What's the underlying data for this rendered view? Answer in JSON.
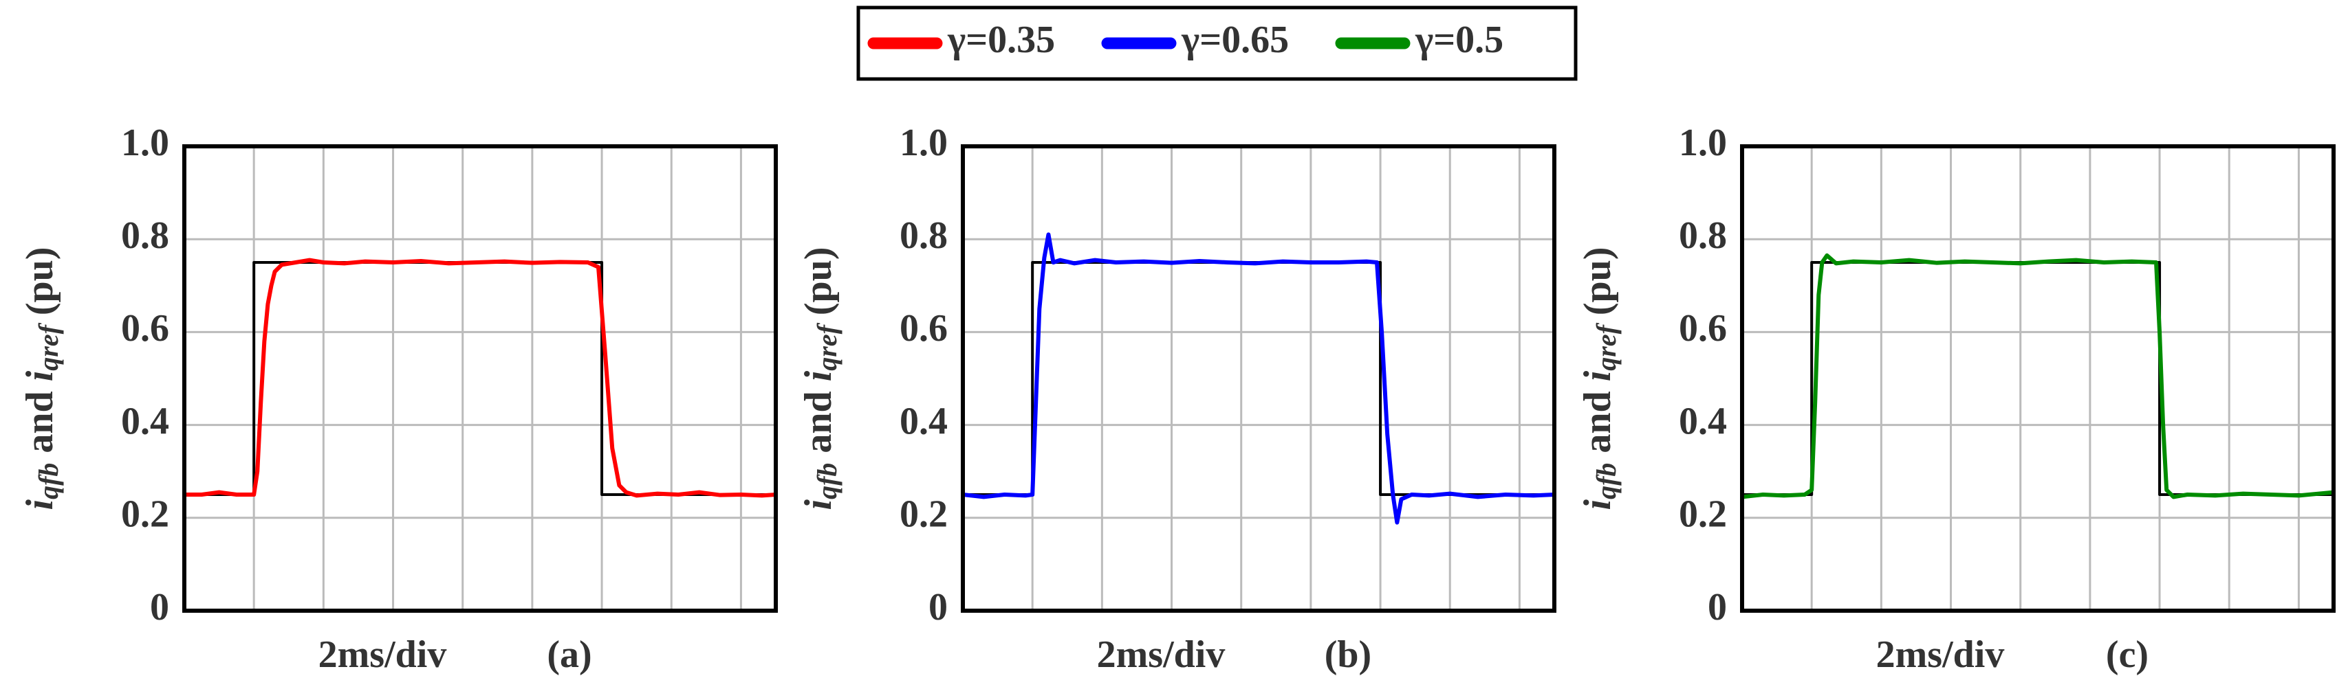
{
  "chart_data": [
    {
      "type": "line",
      "x_label": "2ms/div",
      "panel_label": "(a)",
      "y_label": [
        "i",
        "qfb",
        "and",
        "i",
        "qref",
        "(pu)"
      ],
      "xlim": [
        0,
        8.5
      ],
      "xticks": [
        1,
        2,
        3,
        4,
        5,
        6,
        7,
        8
      ],
      "ylim": [
        0,
        1
      ],
      "yticks": [
        0,
        0.2,
        0.4,
        0.6,
        0.8,
        {
          "value": 1,
          "label": "1.0"
        }
      ],
      "grid": true,
      "series": [
        {
          "color": "#000000",
          "x": [
            0,
            1,
            1,
            6,
            6,
            8.5
          ],
          "values": [
            0.25,
            0.25,
            0.75,
            0.75,
            0.25,
            0.25
          ]
        },
        {
          "name": "γ=0.35",
          "color": "#ff0000",
          "x": [
            0,
            0.25,
            0.5,
            0.75,
            1.0,
            1.05,
            1.1,
            1.15,
            1.2,
            1.25,
            1.3,
            1.4,
            1.6,
            1.8,
            2.0,
            2.3,
            2.6,
            3.0,
            3.4,
            3.8,
            4.2,
            4.6,
            5.0,
            5.4,
            5.8,
            5.95,
            6.05,
            6.15,
            6.25,
            6.35,
            6.5,
            6.8,
            7.1,
            7.4,
            7.7,
            8.0,
            8.3,
            8.5
          ],
          "values": [
            0.25,
            0.25,
            0.255,
            0.25,
            0.25,
            0.3,
            0.45,
            0.58,
            0.66,
            0.7,
            0.73,
            0.745,
            0.75,
            0.755,
            0.75,
            0.748,
            0.752,
            0.75,
            0.753,
            0.748,
            0.75,
            0.752,
            0.749,
            0.751,
            0.75,
            0.74,
            0.55,
            0.35,
            0.27,
            0.255,
            0.248,
            0.252,
            0.25,
            0.255,
            0.249,
            0.25,
            0.248,
            0.25
          ]
        }
      ]
    },
    {
      "type": "line",
      "x_label": "2ms/div",
      "panel_label": "(b)",
      "y_label": [
        "i",
        "qfb",
        "and",
        "i",
        "qref",
        "(pu)"
      ],
      "xlim": [
        0,
        8.5
      ],
      "xticks": [
        1,
        2,
        3,
        4,
        5,
        6,
        7,
        8
      ],
      "ylim": [
        0,
        1
      ],
      "yticks": [
        0,
        0.2,
        0.4,
        0.6,
        0.8,
        {
          "value": 1,
          "label": "1.0"
        }
      ],
      "grid": true,
      "series": [
        {
          "color": "#000000",
          "x": [
            0,
            1,
            1,
            6,
            6,
            8.5
          ],
          "values": [
            0.25,
            0.25,
            0.75,
            0.75,
            0.25,
            0.25
          ]
        },
        {
          "name": "γ=0.65",
          "color": "#0000ff",
          "x": [
            0,
            0.3,
            0.6,
            0.9,
            1.0,
            1.05,
            1.1,
            1.17,
            1.23,
            1.3,
            1.4,
            1.6,
            1.9,
            2.2,
            2.6,
            3.0,
            3.4,
            3.8,
            4.2,
            4.6,
            5.0,
            5.4,
            5.8,
            5.95,
            6.02,
            6.1,
            6.18,
            6.24,
            6.3,
            6.45,
            6.7,
            7.0,
            7.4,
            7.8,
            8.2,
            8.5
          ],
          "values": [
            0.25,
            0.245,
            0.25,
            0.248,
            0.25,
            0.45,
            0.65,
            0.76,
            0.81,
            0.75,
            0.755,
            0.748,
            0.755,
            0.75,
            0.752,
            0.749,
            0.753,
            0.75,
            0.748,
            0.752,
            0.75,
            0.75,
            0.752,
            0.75,
            0.6,
            0.38,
            0.25,
            0.19,
            0.24,
            0.25,
            0.248,
            0.252,
            0.245,
            0.25,
            0.248,
            0.25
          ]
        }
      ]
    },
    {
      "type": "line",
      "x_label": "2ms/div",
      "panel_label": "(c)",
      "y_label": [
        "i",
        "qfb",
        "and",
        "i",
        "qref",
        "(pu)"
      ],
      "xlim": [
        0,
        8.5
      ],
      "xticks": [
        1,
        2,
        3,
        4,
        5,
        6,
        7,
        8
      ],
      "ylim": [
        0,
        1
      ],
      "yticks": [
        0,
        0.2,
        0.4,
        0.6,
        0.8,
        {
          "value": 1,
          "label": "1.0"
        }
      ],
      "grid": true,
      "series": [
        {
          "color": "#000000",
          "x": [
            0,
            1,
            1,
            6,
            6,
            8.5
          ],
          "values": [
            0.25,
            0.25,
            0.75,
            0.75,
            0.25,
            0.25
          ]
        },
        {
          "name": "γ=0.5",
          "color": "#008c00",
          "x": [
            0,
            0.3,
            0.6,
            0.9,
            1.0,
            1.05,
            1.1,
            1.15,
            1.22,
            1.35,
            1.6,
            2.0,
            2.4,
            2.8,
            3.2,
            3.6,
            4.0,
            4.4,
            4.8,
            5.2,
            5.6,
            5.95,
            6.0,
            6.05,
            6.1,
            6.2,
            6.4,
            6.8,
            7.2,
            7.6,
            8.0,
            8.5
          ],
          "values": [
            0.245,
            0.25,
            0.248,
            0.25,
            0.26,
            0.45,
            0.68,
            0.75,
            0.765,
            0.748,
            0.752,
            0.75,
            0.755,
            0.749,
            0.752,
            0.75,
            0.748,
            0.752,
            0.755,
            0.75,
            0.752,
            0.75,
            0.6,
            0.4,
            0.26,
            0.245,
            0.25,
            0.248,
            0.252,
            0.25,
            0.248,
            0.255
          ]
        }
      ]
    }
  ]
}
